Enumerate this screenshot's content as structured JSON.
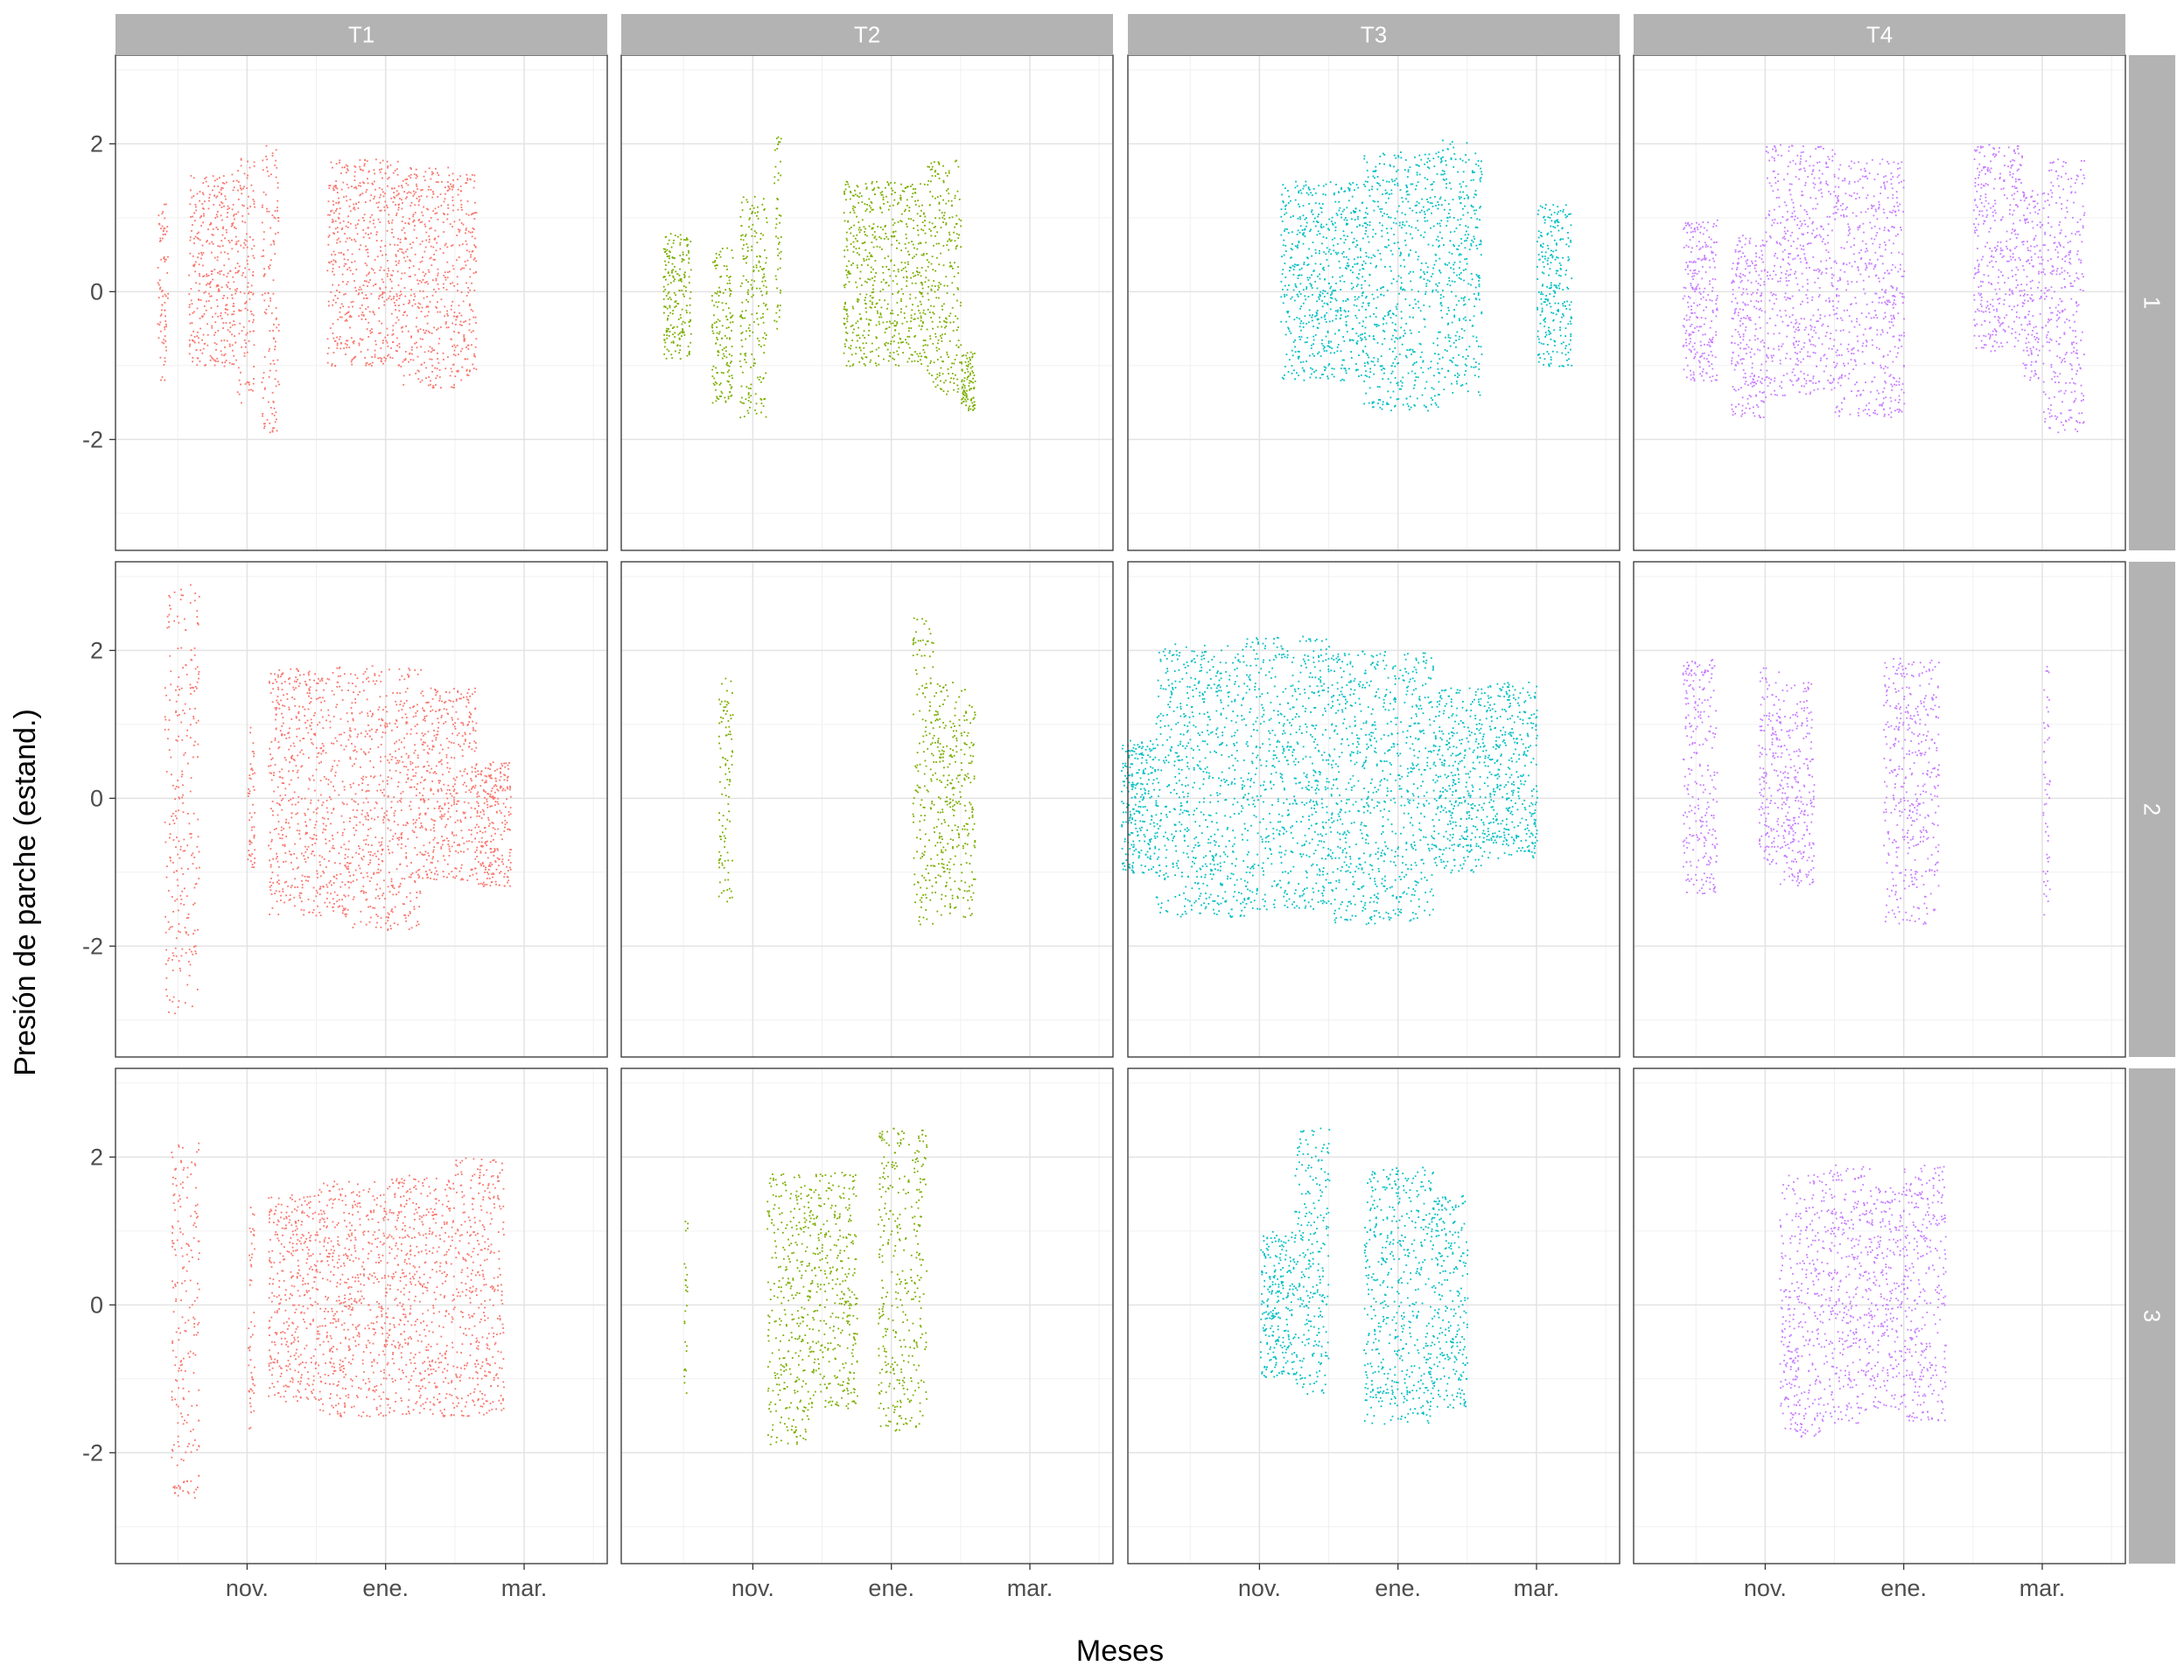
{
  "chart_data": {
    "type": "scatter",
    "facets": {
      "columns": [
        "T1",
        "T2",
        "T3",
        "T4"
      ],
      "rows": [
        "1",
        "2",
        "3"
      ]
    },
    "xlabel": "Meses",
    "ylabel": "Presión de parche (estand.)",
    "x_ticks": [
      "nov.",
      "ene.",
      "mar."
    ],
    "x_tick_positions": [
      1.0,
      3.0,
      5.0
    ],
    "x_range": [
      -0.9,
      6.2
    ],
    "y_ticks": [
      -2,
      0,
      2
    ],
    "ylim": [
      -3.5,
      3.2
    ],
    "grid": true,
    "legend": "none",
    "colors": {
      "T1": "#F8766D",
      "T2": "#7CAE00",
      "T3": "#00BFC4",
      "T4": "#C77CFF"
    },
    "panels": [
      {
        "col": "T1",
        "row": "1",
        "segments": [
          [
            -0.3,
            -0.15,
            -1.2,
            1.2
          ],
          [
            0.15,
            0.85,
            -1.0,
            1.6
          ],
          [
            0.85,
            1.1,
            -1.5,
            1.9
          ],
          [
            1.2,
            1.45,
            -1.9,
            2.0
          ],
          [
            2.15,
            3.2,
            -1.0,
            1.8
          ],
          [
            3.2,
            4.0,
            -1.3,
            1.7
          ],
          [
            4.0,
            4.3,
            -1.2,
            1.6
          ]
        ]
      },
      {
        "col": "T2",
        "row": "1",
        "segments": [
          [
            -0.3,
            0.1,
            -0.9,
            0.8
          ],
          [
            0.4,
            0.7,
            -1.5,
            0.6
          ],
          [
            0.8,
            1.2,
            -1.7,
            1.3
          ],
          [
            1.3,
            1.4,
            -0.5,
            2.2
          ],
          [
            2.3,
            3.5,
            -1.0,
            1.5
          ],
          [
            3.5,
            4.0,
            -1.4,
            1.8
          ],
          [
            4.0,
            4.2,
            -1.6,
            -0.8
          ]
        ]
      },
      {
        "col": "T3",
        "row": "1",
        "segments": [
          [
            1.3,
            2.5,
            -1.2,
            1.5
          ],
          [
            2.5,
            3.6,
            -1.6,
            1.9
          ],
          [
            3.6,
            4.2,
            -1.4,
            2.1
          ],
          [
            5.0,
            5.5,
            -1.0,
            1.2
          ]
        ]
      },
      {
        "col": "T4",
        "row": "1",
        "segments": [
          [
            -0.2,
            0.3,
            -1.2,
            1.0
          ],
          [
            0.5,
            1.0,
            -1.7,
            0.8
          ],
          [
            1.0,
            2.0,
            -1.4,
            2.0
          ],
          [
            2.0,
            3.0,
            -1.7,
            1.8
          ],
          [
            4.0,
            4.7,
            -0.8,
            2.0
          ],
          [
            4.7,
            5.0,
            -1.2,
            1.4
          ],
          [
            5.0,
            5.6,
            -1.9,
            1.8
          ]
        ]
      },
      {
        "col": "T1",
        "row": "2",
        "segments": [
          [
            -0.2,
            0.3,
            -2.9,
            2.9
          ],
          [
            1.0,
            1.1,
            -1.0,
            1.0
          ],
          [
            1.3,
            2.5,
            -1.6,
            1.8
          ],
          [
            2.5,
            3.5,
            -1.8,
            1.8
          ],
          [
            3.5,
            4.3,
            -1.1,
            1.5
          ],
          [
            4.3,
            4.8,
            -1.2,
            0.5
          ]
        ]
      },
      {
        "col": "T2",
        "row": "2",
        "segments": [
          [
            0.5,
            0.7,
            -1.4,
            1.7
          ],
          [
            3.3,
            3.6,
            -1.7,
            2.5
          ],
          [
            3.6,
            4.2,
            -1.6,
            1.6
          ]
        ]
      },
      {
        "col": "T3",
        "row": "2",
        "segments": [
          [
            -1.0,
            -0.5,
            -1.0,
            0.8
          ],
          [
            -0.5,
            0.8,
            -1.6,
            2.1
          ],
          [
            0.8,
            2.0,
            -1.5,
            2.2
          ],
          [
            2.0,
            3.5,
            -1.7,
            2.0
          ],
          [
            3.5,
            4.2,
            -1.0,
            1.5
          ],
          [
            4.2,
            5.0,
            -0.8,
            1.6
          ]
        ]
      },
      {
        "col": "T4",
        "row": "2",
        "segments": [
          [
            -0.2,
            0.3,
            -1.3,
            1.9
          ],
          [
            0.9,
            1.2,
            -0.9,
            1.8
          ],
          [
            1.2,
            1.7,
            -1.2,
            1.6
          ],
          [
            2.7,
            3.5,
            -1.7,
            1.9
          ],
          [
            5.0,
            5.1,
            -1.6,
            1.8
          ]
        ]
      },
      {
        "col": "T1",
        "row": "3",
        "segments": [
          [
            -0.1,
            0.3,
            -2.6,
            2.2
          ],
          [
            1.0,
            1.1,
            -1.7,
            1.4
          ],
          [
            1.3,
            2.0,
            -1.3,
            1.5
          ],
          [
            2.0,
            3.0,
            -1.5,
            1.7
          ],
          [
            3.0,
            4.0,
            -1.5,
            1.8
          ],
          [
            4.0,
            4.7,
            -1.5,
            2.0
          ]
        ]
      },
      {
        "col": "T2",
        "row": "3",
        "segments": [
          [
            0.0,
            0.05,
            -1.2,
            1.2
          ],
          [
            1.2,
            1.8,
            -1.9,
            1.8
          ],
          [
            1.8,
            2.5,
            -1.4,
            1.8
          ],
          [
            2.8,
            3.5,
            -1.7,
            2.4
          ]
        ]
      },
      {
        "col": "T3",
        "row": "3",
        "segments": [
          [
            1.0,
            1.5,
            -1.0,
            1.0
          ],
          [
            1.5,
            2.0,
            -1.2,
            2.4
          ],
          [
            2.5,
            3.5,
            -1.6,
            1.9
          ],
          [
            3.5,
            4.0,
            -1.4,
            1.5
          ]
        ]
      },
      {
        "col": "T4",
        "row": "3",
        "segments": [
          [
            1.2,
            1.8,
            -1.8,
            1.8
          ],
          [
            1.8,
            2.5,
            -1.6,
            1.9
          ],
          [
            2.5,
            3.0,
            -1.4,
            1.6
          ],
          [
            3.0,
            3.6,
            -1.6,
            1.9
          ]
        ]
      }
    ]
  }
}
